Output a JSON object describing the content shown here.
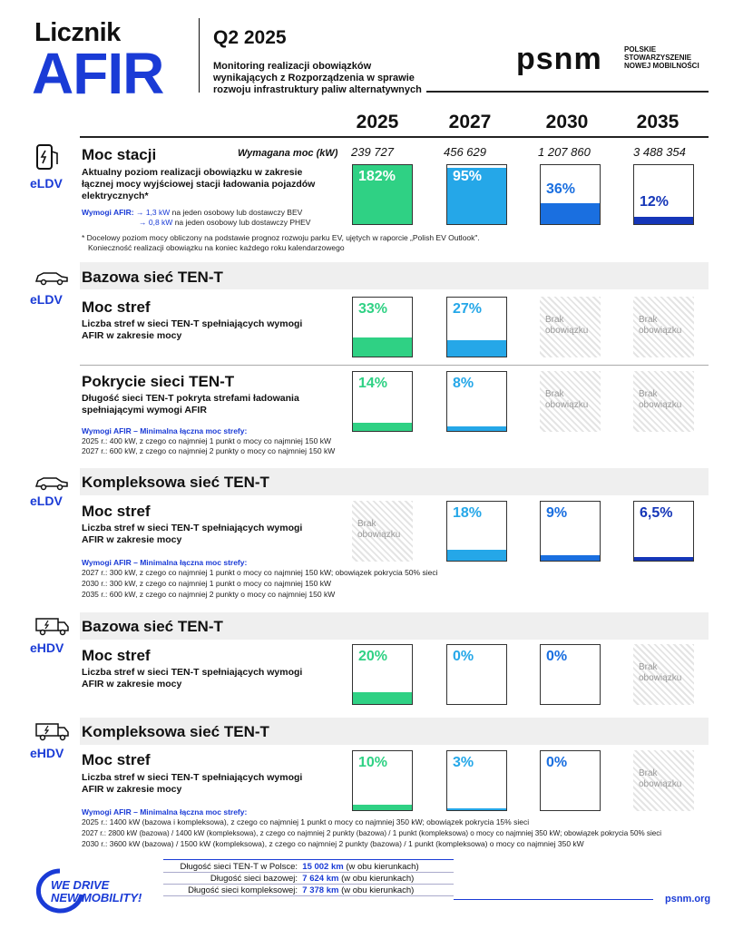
{
  "header": {
    "title1": "Licznik",
    "title2": "AFIR",
    "quarter": "Q2 2025",
    "subtitle": "Monitoring realizacji obowiązków wynikających z Rozporządzenia w sprawie rozwoju infrastruktury paliw alternatywnych",
    "logo": "psnm",
    "logo_sub": "POLSKIE STOWARZYSZENIE NOWEJ MOBILNOŚCI"
  },
  "years": [
    "2025",
    "2027",
    "2030",
    "2035"
  ],
  "s1": {
    "vehicle": "eLDV",
    "title": "Moc stacji",
    "req_label": "Wymagana moc (kW)",
    "req_values": [
      "239 727",
      "456 629",
      "1 207 860",
      "3 488 354"
    ],
    "desc": "Aktualny poziom realizacji obowiązku w zakresie łącznej mocy wyjściowej stacji ładowania pojazdów elektrycznych*",
    "afir_label": "Wymogi AFIR:",
    "afir1_kw": "→  1,3 kW",
    "afir1": "na jeden osobowy lub dostawczy BEV",
    "afir2_kw": "→  0,8 kW",
    "afir2": "na jeden osobowy lub dostawczy PHEV",
    "note1": "* Docelowy poziom mocy obliczony na podstawie prognoz rozwoju parku EV, ujętych w raporcie „Polish EV Outlook\".",
    "note2": "Konieczność realizacji obowiązku na koniec każdego roku kalendarzowego",
    "pct": [
      "182%",
      "95%",
      "36%",
      "12%"
    ],
    "vals": [
      182,
      95,
      36,
      12
    ]
  },
  "s2": {
    "vehicle": "eLDV",
    "title": "Bazowa sieć TEN-T",
    "a_title": "Moc stref",
    "a_desc": "Liczba stref w sieci TEN-T spełniających wymogi AFIR w zakresie mocy",
    "a_pct": [
      "33%",
      "27%"
    ],
    "a_vals": [
      33,
      27
    ],
    "b_title": "Pokrycie sieci TEN-T",
    "b_desc": "Długość sieci TEN-T pokryta strefami ładowania spełniającymi wymogi AFIR",
    "b_pct": [
      "14%",
      "8%"
    ],
    "b_vals": [
      14,
      8
    ],
    "req": "Wymogi AFIR – Minimalna łączna moc strefy:",
    "r1": "2025 r.: 400 kW, z czego co najmniej 1 punkt o mocy co najmniej 150 kW",
    "r2": "2027 r.: 600 kW, z czego co najmniej 2 punkty o mocy co najmniej 150 kW",
    "na": "Brak obowiązku"
  },
  "s3": {
    "vehicle": "eLDV",
    "title": "Kompleksowa sieć TEN-T",
    "a_title": "Moc stref",
    "a_desc": "Liczba stref w sieci TEN-T spełniających wymogi AFIR w zakresie mocy",
    "pct": [
      "18%",
      "9%",
      "6,5%"
    ],
    "vals": [
      18,
      9,
      6.5
    ],
    "na": "Brak obowiązku",
    "req": "Wymogi AFIR – Minimalna łączna moc strefy:",
    "r1": "2027 r.: 300 kW, z czego co najmniej 1 punkt o mocy co najmniej 150 kW; obowiązek pokrycia 50% sieci",
    "r2": "2030 r.: 300 kW, z czego co najmniej 1 punkt o mocy co najmniej 150 kW",
    "r3": "2035 r.: 600 kW, z czego co najmniej 2 punkty o mocy co najmniej 150 kW"
  },
  "s4": {
    "vehicle": "eHDV",
    "title": "Bazowa sieć TEN-T",
    "a_title": "Moc stref",
    "a_desc": "Liczba stref w sieci TEN-T spełniających wymogi AFIR w zakresie mocy",
    "pct": [
      "20%",
      "0%",
      "0%"
    ],
    "vals": [
      20,
      0,
      0
    ],
    "na": "Brak obowiązku"
  },
  "s5": {
    "vehicle": "eHDV",
    "title": "Kompleksowa sieć TEN-T",
    "a_title": "Moc stref",
    "a_desc": "Liczba stref w sieci TEN-T spełniających wymogi AFIR w zakresie mocy",
    "pct": [
      "10%",
      "3%",
      "0%"
    ],
    "vals": [
      10,
      3,
      0
    ],
    "na": "Brak obowiązku",
    "req": "Wymogi AFIR – Minimalna łączna moc strefy:",
    "r1": "2025 r.: 1400 kW (bazowa i kompleksowa), z czego co najmniej 1 punkt o mocy co najmniej 350 kW; obowiązek pokrycia 15% sieci",
    "r2": "2027 r.: 2800 kW (bazowa) / 1400 kW (kompleksowa), z czego co najmniej 2 punkty (bazowa) / 1 punkt (kompleksowa) o mocy co najmniej 350 kW; obowiązek pokrycia  50% sieci",
    "r3": "2030 r.: 3600 kW (bazowa) / 1500 kW (kompleksowa), z czego co najmniej 2 punkty (bazowa) / 1 punkt (kompleksowa) o mocy co najmniej 350 kW"
  },
  "footer": {
    "slogan1": "WE DRIVE",
    "slogan2": "NEW MOBILITY!",
    "url": "psnm.org",
    "rows": [
      {
        "label": "Długość sieci TEN-T w Polsce:",
        "value": "15 002 km",
        "note": "(w obu kierunkach)"
      },
      {
        "label": "Długość sieci bazowej:",
        "value": "7 624 km",
        "note": "(w obu kierunkach)"
      },
      {
        "label": "Długość sieci kompleksowej:",
        "value": "7 378 km",
        "note": "(w obu kierunkach)"
      }
    ]
  },
  "colors": {
    "accent": "#1a3bd6",
    "green": "#2fd184",
    "sky": "#25a7e8",
    "mid": "#1a6fe0",
    "navy": "#1536b8"
  }
}
